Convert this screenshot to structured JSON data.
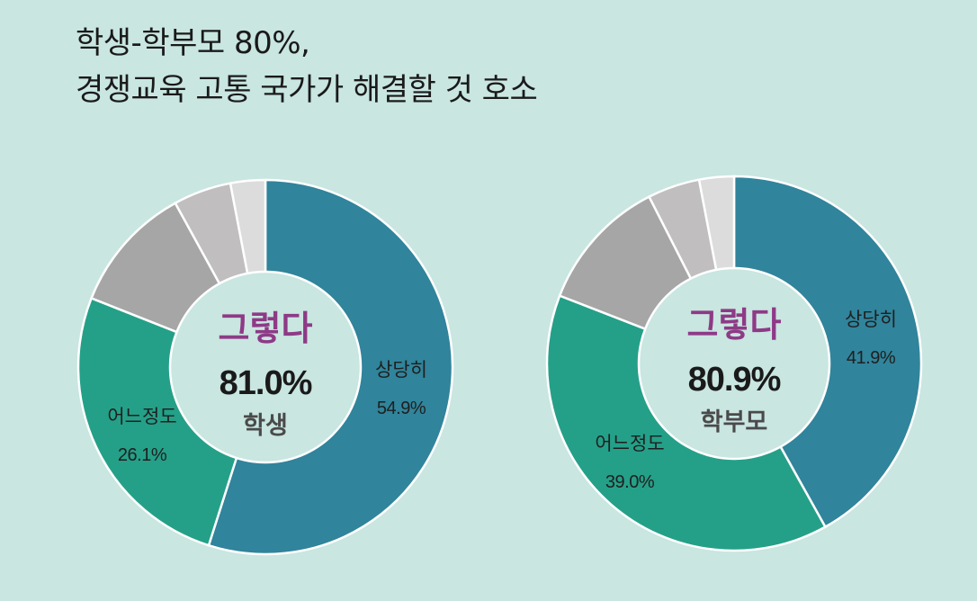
{
  "title": {
    "line1": "학생-학부모 80%,",
    "line2": "경쟁교육 고통 국가가 해결할 것 호소"
  },
  "colors": {
    "background": "#c9e6e1",
    "accent": "#8e3a86",
    "segment": [
      "#30849b",
      "#24a088",
      "#a6a6a6",
      "#c0bebe",
      "#dcdcdc"
    ],
    "stroke": "#ffffff",
    "center": "#c9e6e1"
  },
  "chart_data": [
    {
      "type": "pie",
      "center_label": "그렇다",
      "center_value": "81.0%",
      "center_group": "학생",
      "slices": [
        {
          "label": "상당히",
          "value": 54.9,
          "display": "54.9%"
        },
        {
          "label": "어느정도",
          "value": 26.1,
          "display": "26.1%"
        },
        {
          "label": "",
          "value": 11.0,
          "display": ""
        },
        {
          "label": "",
          "value": 5.0,
          "display": ""
        },
        {
          "label": "",
          "value": 3.0,
          "display": ""
        }
      ]
    },
    {
      "type": "pie",
      "center_label": "그렇다",
      "center_value": "80.9%",
      "center_group": "학부모",
      "slices": [
        {
          "label": "상당히",
          "value": 41.9,
          "display": "41.9%"
        },
        {
          "label": "어느정도",
          "value": 39.0,
          "display": "39.0%"
        },
        {
          "label": "",
          "value": 11.6,
          "display": ""
        },
        {
          "label": "",
          "value": 4.5,
          "display": ""
        },
        {
          "label": "",
          "value": 3.0,
          "display": ""
        }
      ]
    }
  ]
}
